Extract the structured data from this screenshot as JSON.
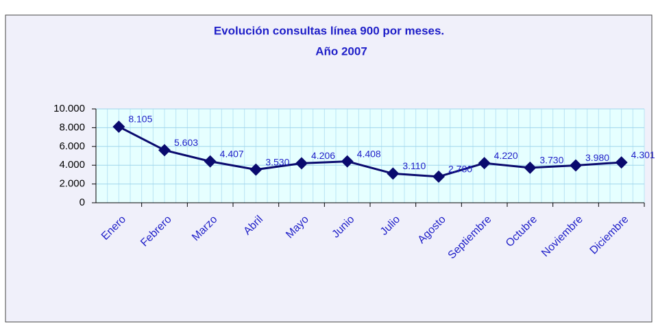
{
  "chart_data": {
    "type": "line",
    "title": "Evolución consultas línea 900 por meses.",
    "subtitle": "Año 2007",
    "categories": [
      "Enero",
      "Febrero",
      "Marzo",
      "Abril",
      "Mayo",
      "Junio",
      "Julio",
      "Agosto",
      "Septiembre",
      "Octubre",
      "Noviembre",
      "Diciembre"
    ],
    "series": [
      {
        "name": "Consultas",
        "color": "#0a0a6e",
        "values": [
          8105,
          5603,
          4407,
          3530,
          4206,
          4408,
          3110,
          2780,
          4220,
          3730,
          3980,
          4301
        ],
        "value_labels": [
          "8.105",
          "5.603",
          "4.407",
          "3.530",
          "4.206",
          "4.408",
          "3.110",
          "2.780",
          "4.220",
          "3.730",
          "3.980",
          "4.301"
        ]
      }
    ],
    "ylim": [
      0,
      10000
    ],
    "yticks": [
      0,
      {
        "value": 2000,
        "label": "2.000"
      },
      {
        "value": 4000,
        "label": "4.000"
      },
      {
        "value": 6000,
        "label": "6.000"
      },
      {
        "value": 8000,
        "label": "8.000"
      },
      {
        "value": 10000,
        "label": "10.000"
      }
    ],
    "grid": true
  }
}
